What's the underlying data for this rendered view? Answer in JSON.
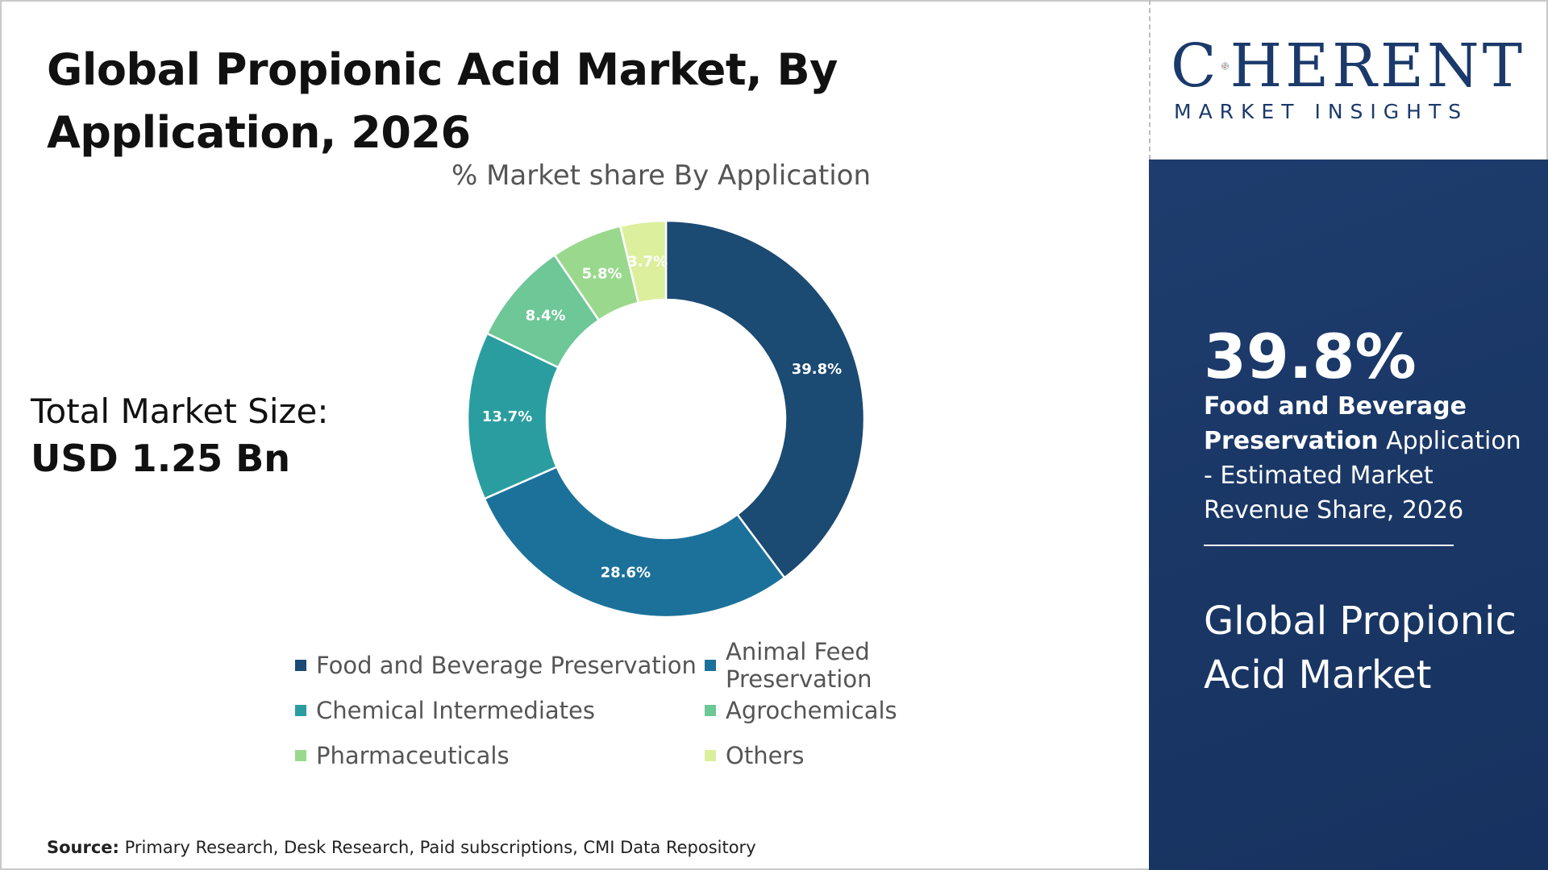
{
  "title": "Global Propionic Acid Market, By Application, 2026",
  "total": {
    "label": "Total Market Size:",
    "value": "USD 1.25 Bn"
  },
  "source": {
    "prefix": "Source:",
    "text": " Primary Research, Desk Research, Paid subscriptions, CMI Data Repository"
  },
  "logo": {
    "main_before": "C",
    "main_after": "HERENT",
    "sub": "MARKET INSIGHTS",
    "colors": [
      "#d23b6a",
      "#f2a33a",
      "#6abf4b",
      "#2f8fd0",
      "#8a4fa3"
    ]
  },
  "side_panel": {
    "percent": "39.8%",
    "highlight": "Food and Beverage Preservation",
    "description": " Application - Estimated Market Revenue Share, 2026",
    "market_name": "Global Propionic Acid Market"
  },
  "chart_data": {
    "type": "pie",
    "subtype": "donut",
    "title": "% Market share By Application",
    "categories": [
      "Food and Beverage Preservation",
      "Animal Feed Preservation",
      "Chemical Intermediates",
      "Agrochemicals",
      "Pharmaceuticals",
      "Others"
    ],
    "values": [
      39.8,
      28.6,
      13.7,
      8.4,
      5.8,
      3.7
    ],
    "labels": [
      "39.8%",
      "28.6%",
      "13.7%",
      "8.4%",
      "5.8%",
      "3.7%"
    ],
    "colors": [
      "#1b4a72",
      "#1c719b",
      "#2a9da0",
      "#6dc797",
      "#9ad98d",
      "#dcef9d"
    ],
    "label_colors": [
      "#ffffff",
      "#ffffff",
      "#ffffff",
      "#ffffff",
      "#ffffff",
      "#ffffff"
    ],
    "legend_position": "bottom"
  }
}
